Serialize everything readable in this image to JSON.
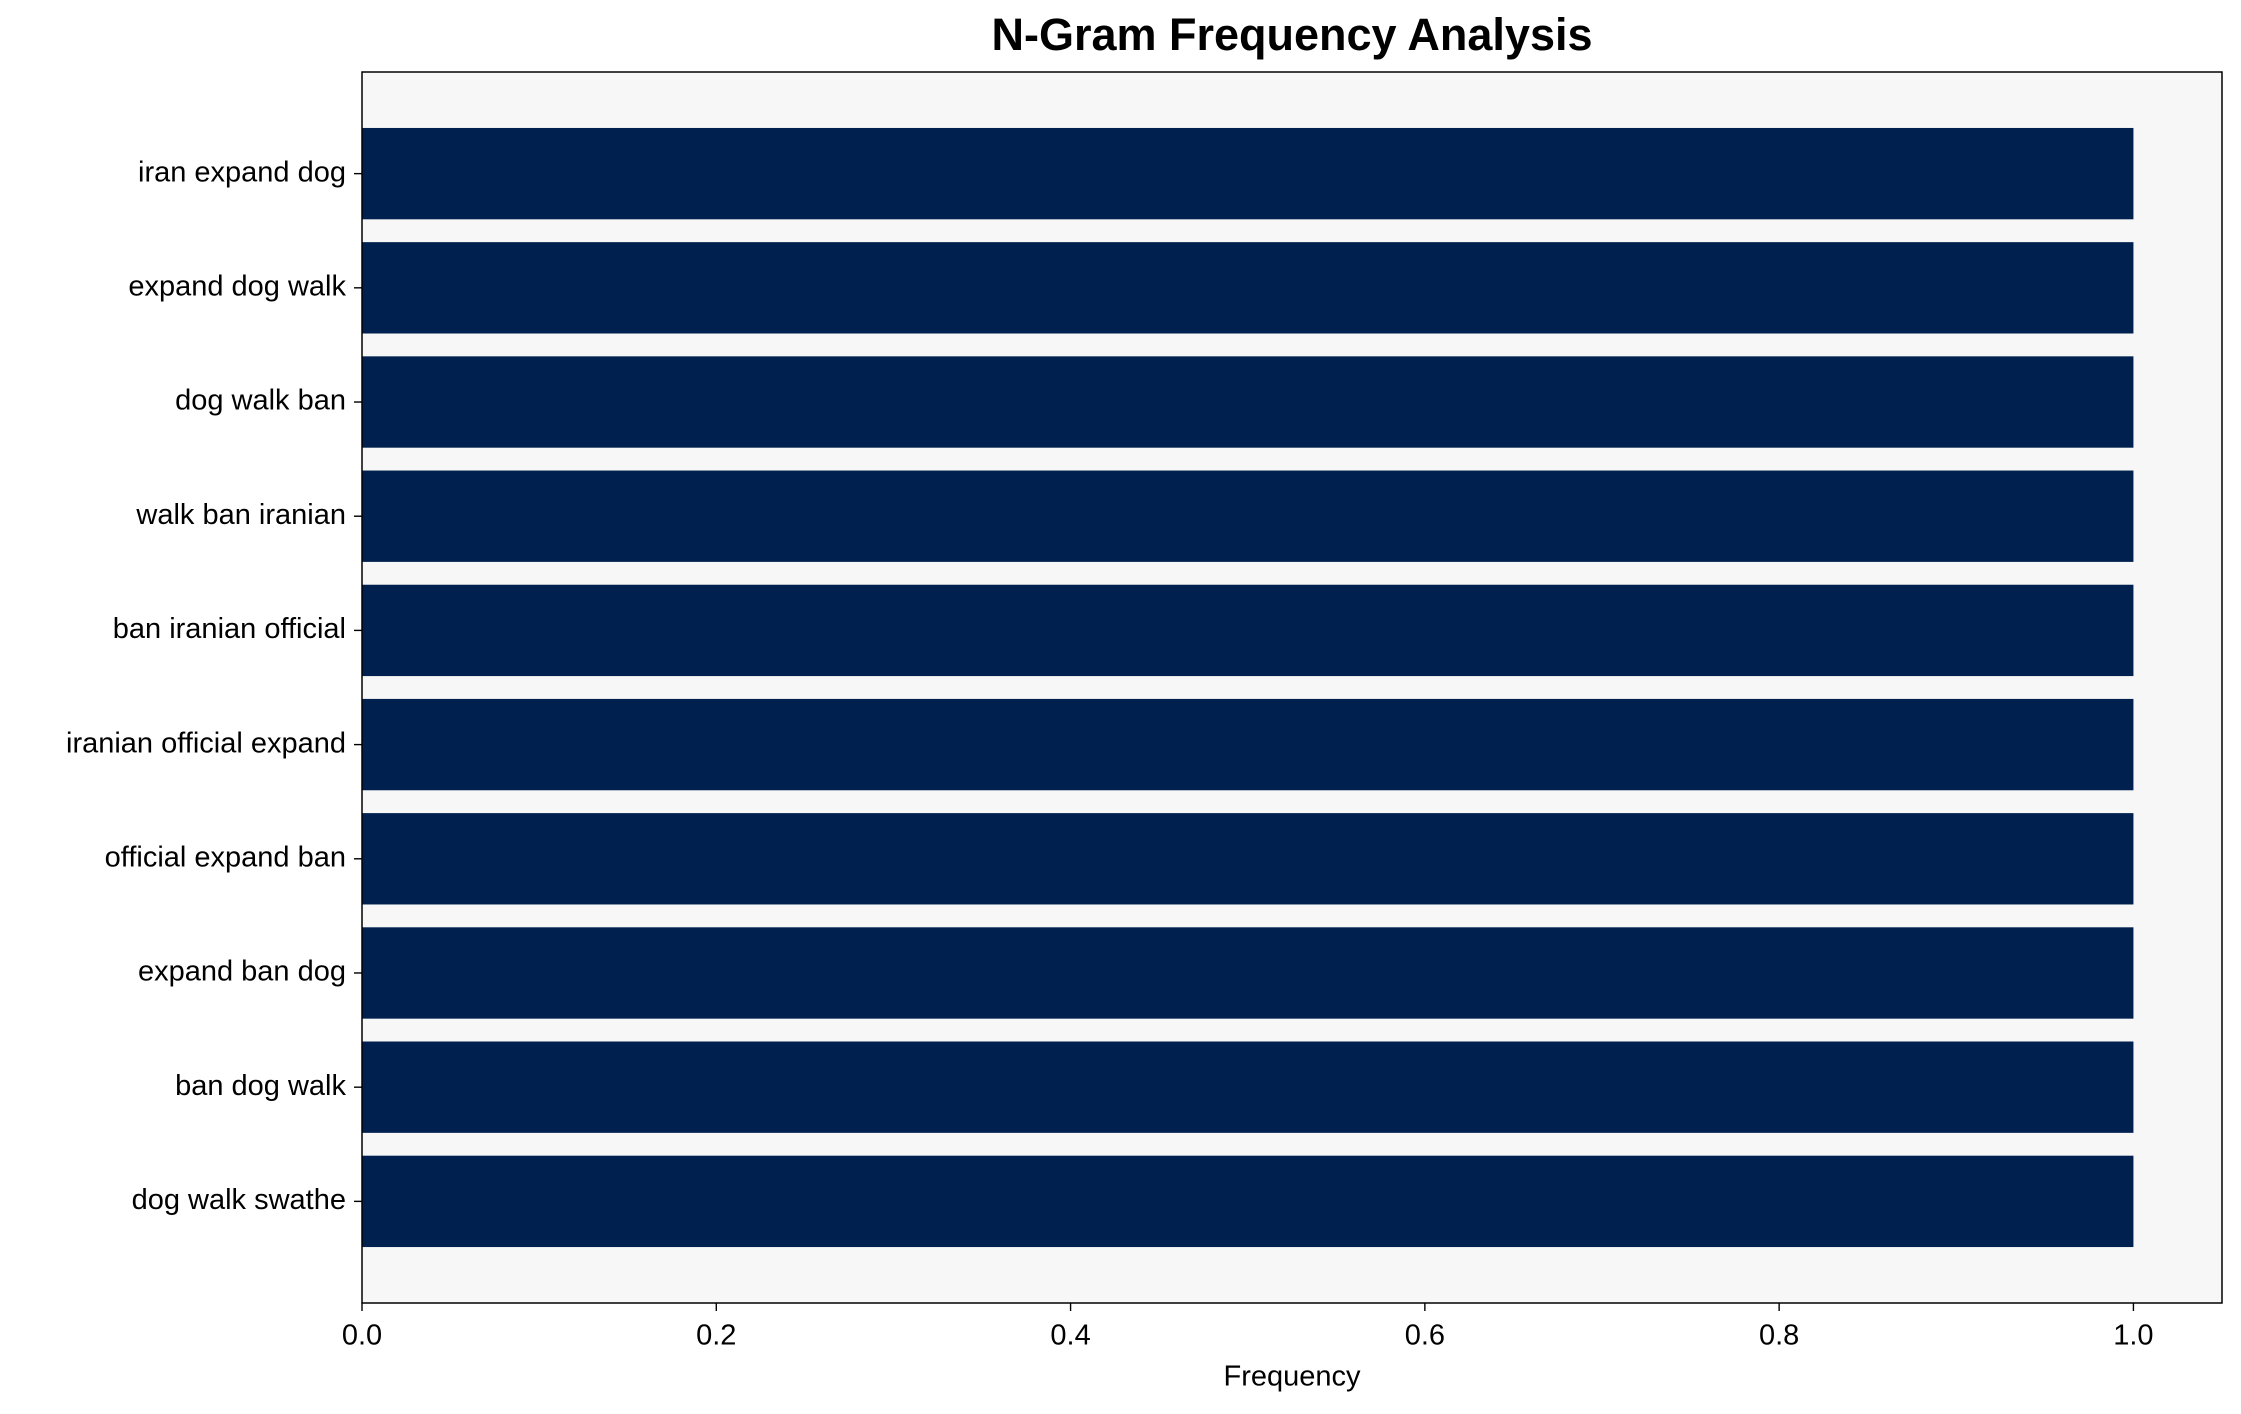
{
  "chart_data": {
    "type": "barh",
    "title": "N-Gram Frequency Analysis",
    "xlabel": "Frequency",
    "categories": [
      "iran expand dog",
      "expand dog walk",
      "dog walk ban",
      "walk ban iranian",
      "ban iranian official",
      "iranian official expand",
      "official expand ban",
      "expand ban dog",
      "ban dog walk",
      "dog walk swathe"
    ],
    "values": [
      1,
      1,
      1,
      1,
      1,
      1,
      1,
      1,
      1,
      1
    ],
    "color": "#00214f",
    "xlim": [
      0,
      1.05
    ],
    "xticks": [
      {
        "value": 0,
        "label": "0.0"
      },
      {
        "value": 0.2,
        "label": "0.2"
      },
      {
        "value": 0.4,
        "label": "0.4"
      },
      {
        "value": 0.6,
        "label": "0.6"
      },
      {
        "value": 0.8,
        "label": "0.8"
      },
      {
        "value": 1,
        "label": "1.0"
      }
    ],
    "grid": false
  }
}
